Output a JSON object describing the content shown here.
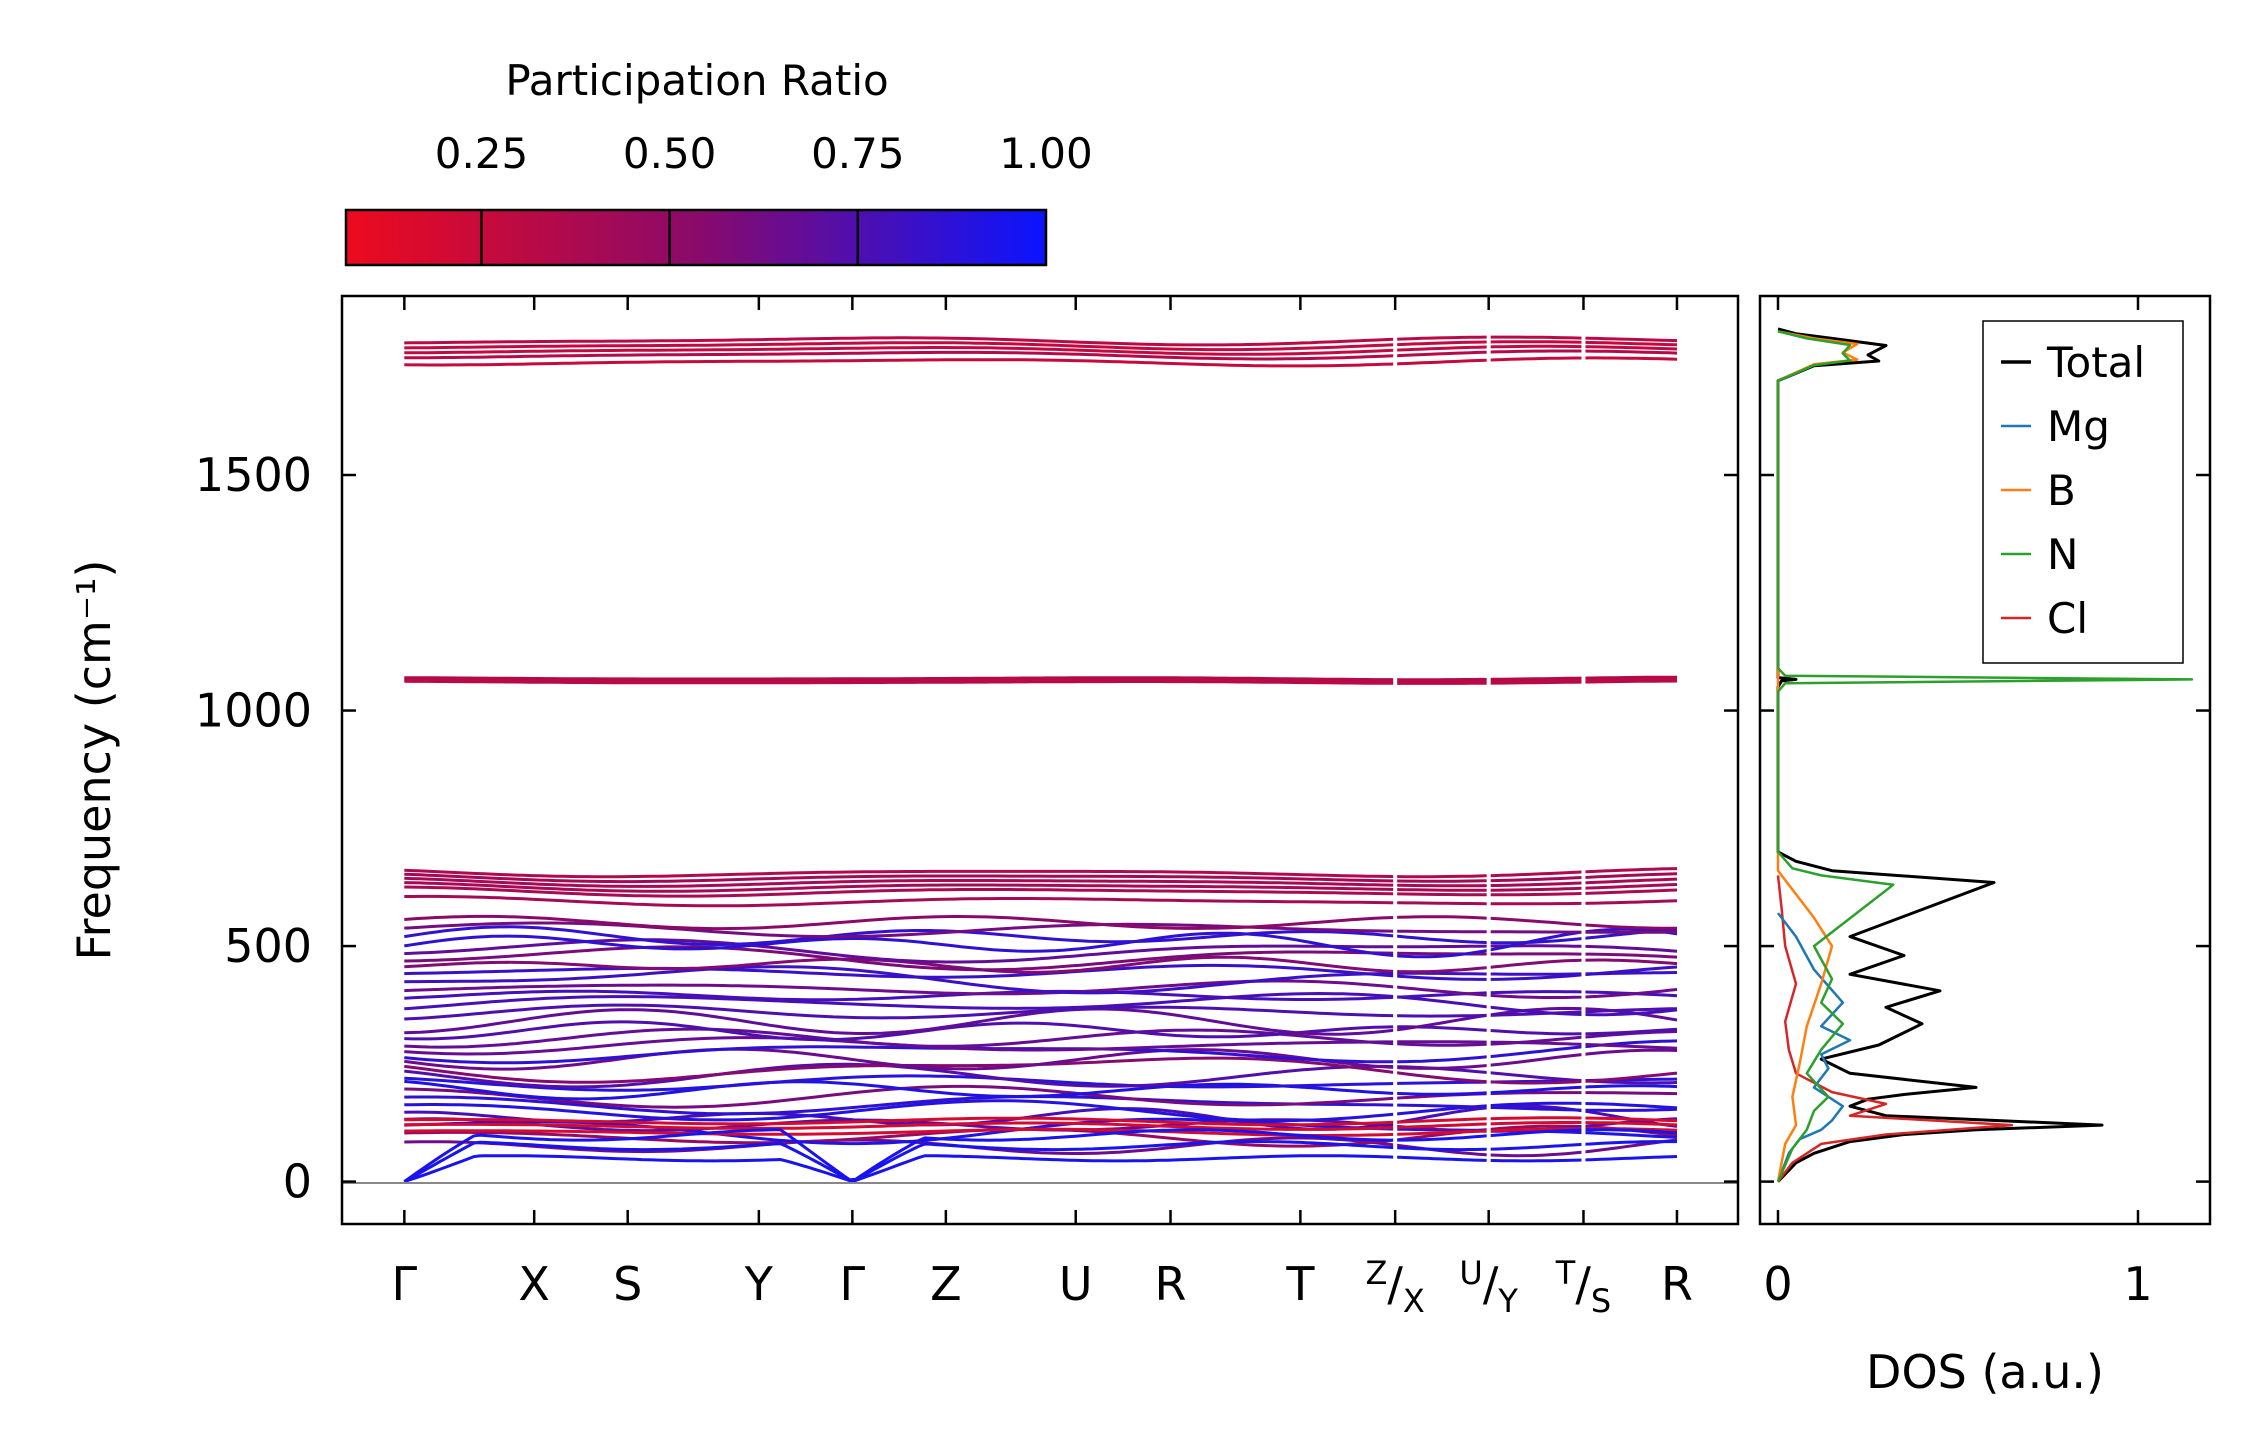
{
  "colorbar": {
    "label": "Participation Ratio",
    "ticks": [
      0.25,
      0.5,
      0.75,
      1.0
    ],
    "tick_labels": [
      "0.25",
      "0.50",
      "0.75",
      "1.00"
    ],
    "range": [
      0.07,
      1.0
    ],
    "color_low": "#ee0a1e",
    "color_mid": "#8a0a6a",
    "color_high": "#0a14ff"
  },
  "chart_data": [
    {
      "type": "line",
      "name": "phonon band structure",
      "ylabel": "Frequency (cm⁻¹)",
      "ylim": [
        -90,
        1880
      ],
      "yticks": [
        0,
        500,
        1000,
        1500
      ],
      "ytick_labels": [
        "0",
        "500",
        "1000",
        "1500"
      ],
      "path_ticks": [
        {
          "label": "Γ",
          "pos": 0.0
        },
        {
          "label": "X",
          "pos": 1.0
        },
        {
          "label": "S",
          "pos": 1.72
        },
        {
          "label": "Y",
          "pos": 2.73
        },
        {
          "label": "Γ",
          "pos": 3.45
        },
        {
          "label": "Z",
          "pos": 4.17
        },
        {
          "label": "U",
          "pos": 5.17
        },
        {
          "label": "R",
          "pos": 5.9
        },
        {
          "label": "T",
          "pos": 6.9
        },
        {
          "label": "Z|X",
          "pos": 7.63,
          "label_sup": "Z",
          "label_sub": "X"
        },
        {
          "label": "U|Y",
          "pos": 8.35,
          "label_sup": "U",
          "label_sub": "Y"
        },
        {
          "label": "T|S",
          "pos": 9.08,
          "label_sup": "T",
          "label_sub": "S"
        },
        {
          "label": "R",
          "pos": 9.8
        }
      ],
      "xlim": [
        -0.48,
        10.27
      ],
      "zero_line": 0,
      "bands": {
        "optic_high_cm1": [
          1740,
          1755,
          1765,
          1775,
          1785
        ],
        "optic_mid_cm1": [
          1060,
          1065,
          1068
        ],
        "optic_low_cm1": [
          595,
          615,
          625,
          635,
          645,
          655
        ],
        "main_block_cm1": [
          75,
          95,
          110,
          120,
          135,
          150,
          165,
          180,
          195,
          210,
          225,
          240,
          260,
          275,
          290,
          305,
          320,
          340,
          360,
          380,
          395,
          410,
          430,
          445,
          460,
          475,
          490,
          505,
          520,
          535,
          550
        ],
        "acoustic_at_gamma_cm1": [
          0,
          0,
          0
        ]
      }
    },
    {
      "type": "line",
      "name": "phonon DOS",
      "xlabel": "DOS (a.u.)",
      "xlim": [
        -0.05,
        1.2
      ],
      "xticks": [
        0,
        1
      ],
      "xtick_labels": [
        "0",
        "1"
      ],
      "ylim": [
        -90,
        1880
      ],
      "series": [
        {
          "name": "Total",
          "color": "#000000",
          "x": [
            0,
            0.05,
            0.1,
            0.2,
            0.35,
            0.55,
            0.9,
            0.3,
            0.2,
            0.25,
            0.35,
            0.55,
            0.2,
            0.12,
            0.28,
            0.4,
            0.3,
            0.45,
            0.2,
            0.35,
            0.2,
            0.6,
            0.15,
            0.05,
            0,
            0,
            0,
            0,
            0.01,
            0.05,
            0,
            0,
            0,
            0,
            0.1,
            0.28,
            0.25,
            0.3,
            0.15,
            0.05,
            0
          ],
          "y": [
            0,
            40,
            60,
            85,
            100,
            110,
            120,
            140,
            160,
            175,
            185,
            200,
            230,
            260,
            290,
            335,
            370,
            405,
            440,
            480,
            520,
            635,
            660,
            680,
            700,
            900,
            1000,
            1050,
            1063,
            1066,
            1070,
            1200,
            1500,
            1700,
            1732,
            1742,
            1755,
            1775,
            1790,
            1800,
            1810
          ]
        },
        {
          "name": "Mg",
          "color": "#1f77b4",
          "x": [
            0,
            0.03,
            0.06,
            0.12,
            0.15,
            0.18,
            0.1,
            0.14,
            0.12,
            0.2,
            0.12,
            0.18,
            0.1,
            0.05,
            0
          ],
          "y": [
            0,
            60,
            90,
            110,
            130,
            160,
            200,
            240,
            270,
            300,
            330,
            380,
            450,
            520,
            570
          ]
        },
        {
          "name": "B",
          "color": "#ff7f0e",
          "x": [
            0,
            0.02,
            0.05,
            0.04,
            0.06,
            0.08,
            0.12,
            0.15,
            0.1,
            0.04,
            0,
            0,
            0,
            0.1,
            0.22,
            0.18,
            0.22,
            0.1,
            0
          ],
          "y": [
            0,
            80,
            120,
            180,
            250,
            330,
            420,
            500,
            560,
            620,
            660,
            1000,
            1700,
            1735,
            1745,
            1760,
            1778,
            1790,
            1805
          ]
        },
        {
          "name": "N",
          "color": "#2ca02c",
          "x": [
            0,
            0.04,
            0.08,
            0.1,
            0.14,
            0.08,
            0.12,
            0.18,
            0.12,
            0.15,
            0.1,
            0.32,
            0.12,
            0.04,
            0,
            0,
            0.02,
            1.15,
            0.02,
            0,
            0,
            0.1,
            0.2,
            0.18,
            0.2,
            0.08,
            0
          ],
          "y": [
            0,
            70,
            110,
            150,
            180,
            230,
            280,
            335,
            380,
            430,
            500,
            630,
            650,
            665,
            700,
            1040,
            1058,
            1066,
            1074,
            1090,
            1700,
            1733,
            1743,
            1758,
            1776,
            1790,
            1805
          ]
        },
        {
          "name": "Cl",
          "color": "#d62728",
          "x": [
            0,
            0.04,
            0.12,
            0.3,
            0.65,
            0.2,
            0.3,
            0.15,
            0.05,
            0.03,
            0.02,
            0.05,
            0.02,
            0.01,
            0
          ],
          "y": [
            0,
            40,
            80,
            100,
            120,
            140,
            165,
            190,
            230,
            280,
            340,
            420,
            500,
            580,
            650
          ]
        }
      ],
      "legend": {
        "position": "top-right",
        "entries": [
          "Total",
          "Mg",
          "B",
          "N",
          "Cl"
        ]
      }
    }
  ]
}
